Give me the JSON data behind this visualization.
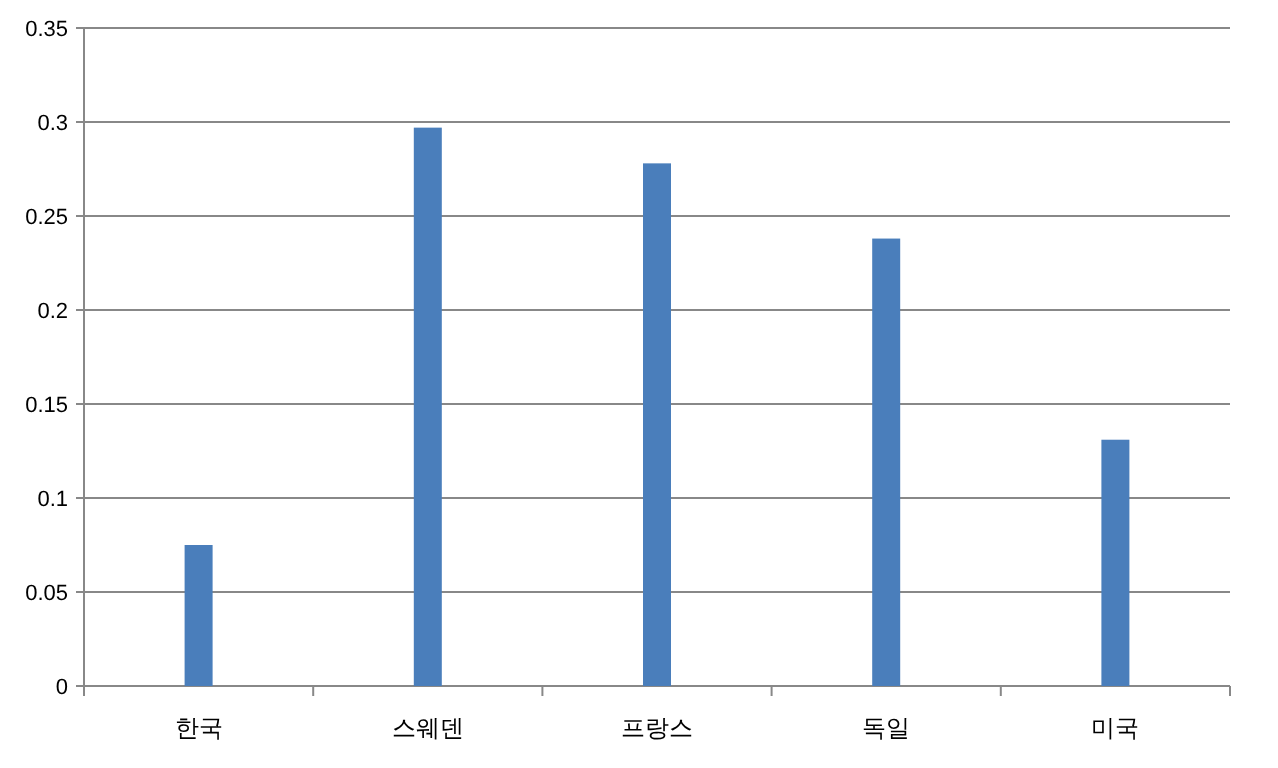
{
  "chart_data": {
    "type": "bar",
    "categories": [
      "한국",
      "스웨덴",
      "프랑스",
      "독일",
      "미국"
    ],
    "values": [
      0.075,
      0.297,
      0.278,
      0.238,
      0.131
    ],
    "color": "#4a7ebb",
    "ylim": [
      0,
      0.35
    ],
    "yticks": [
      0,
      0.05,
      0.1,
      0.15,
      0.2,
      0.25,
      0.3,
      0.35
    ],
    "grid": "y"
  }
}
